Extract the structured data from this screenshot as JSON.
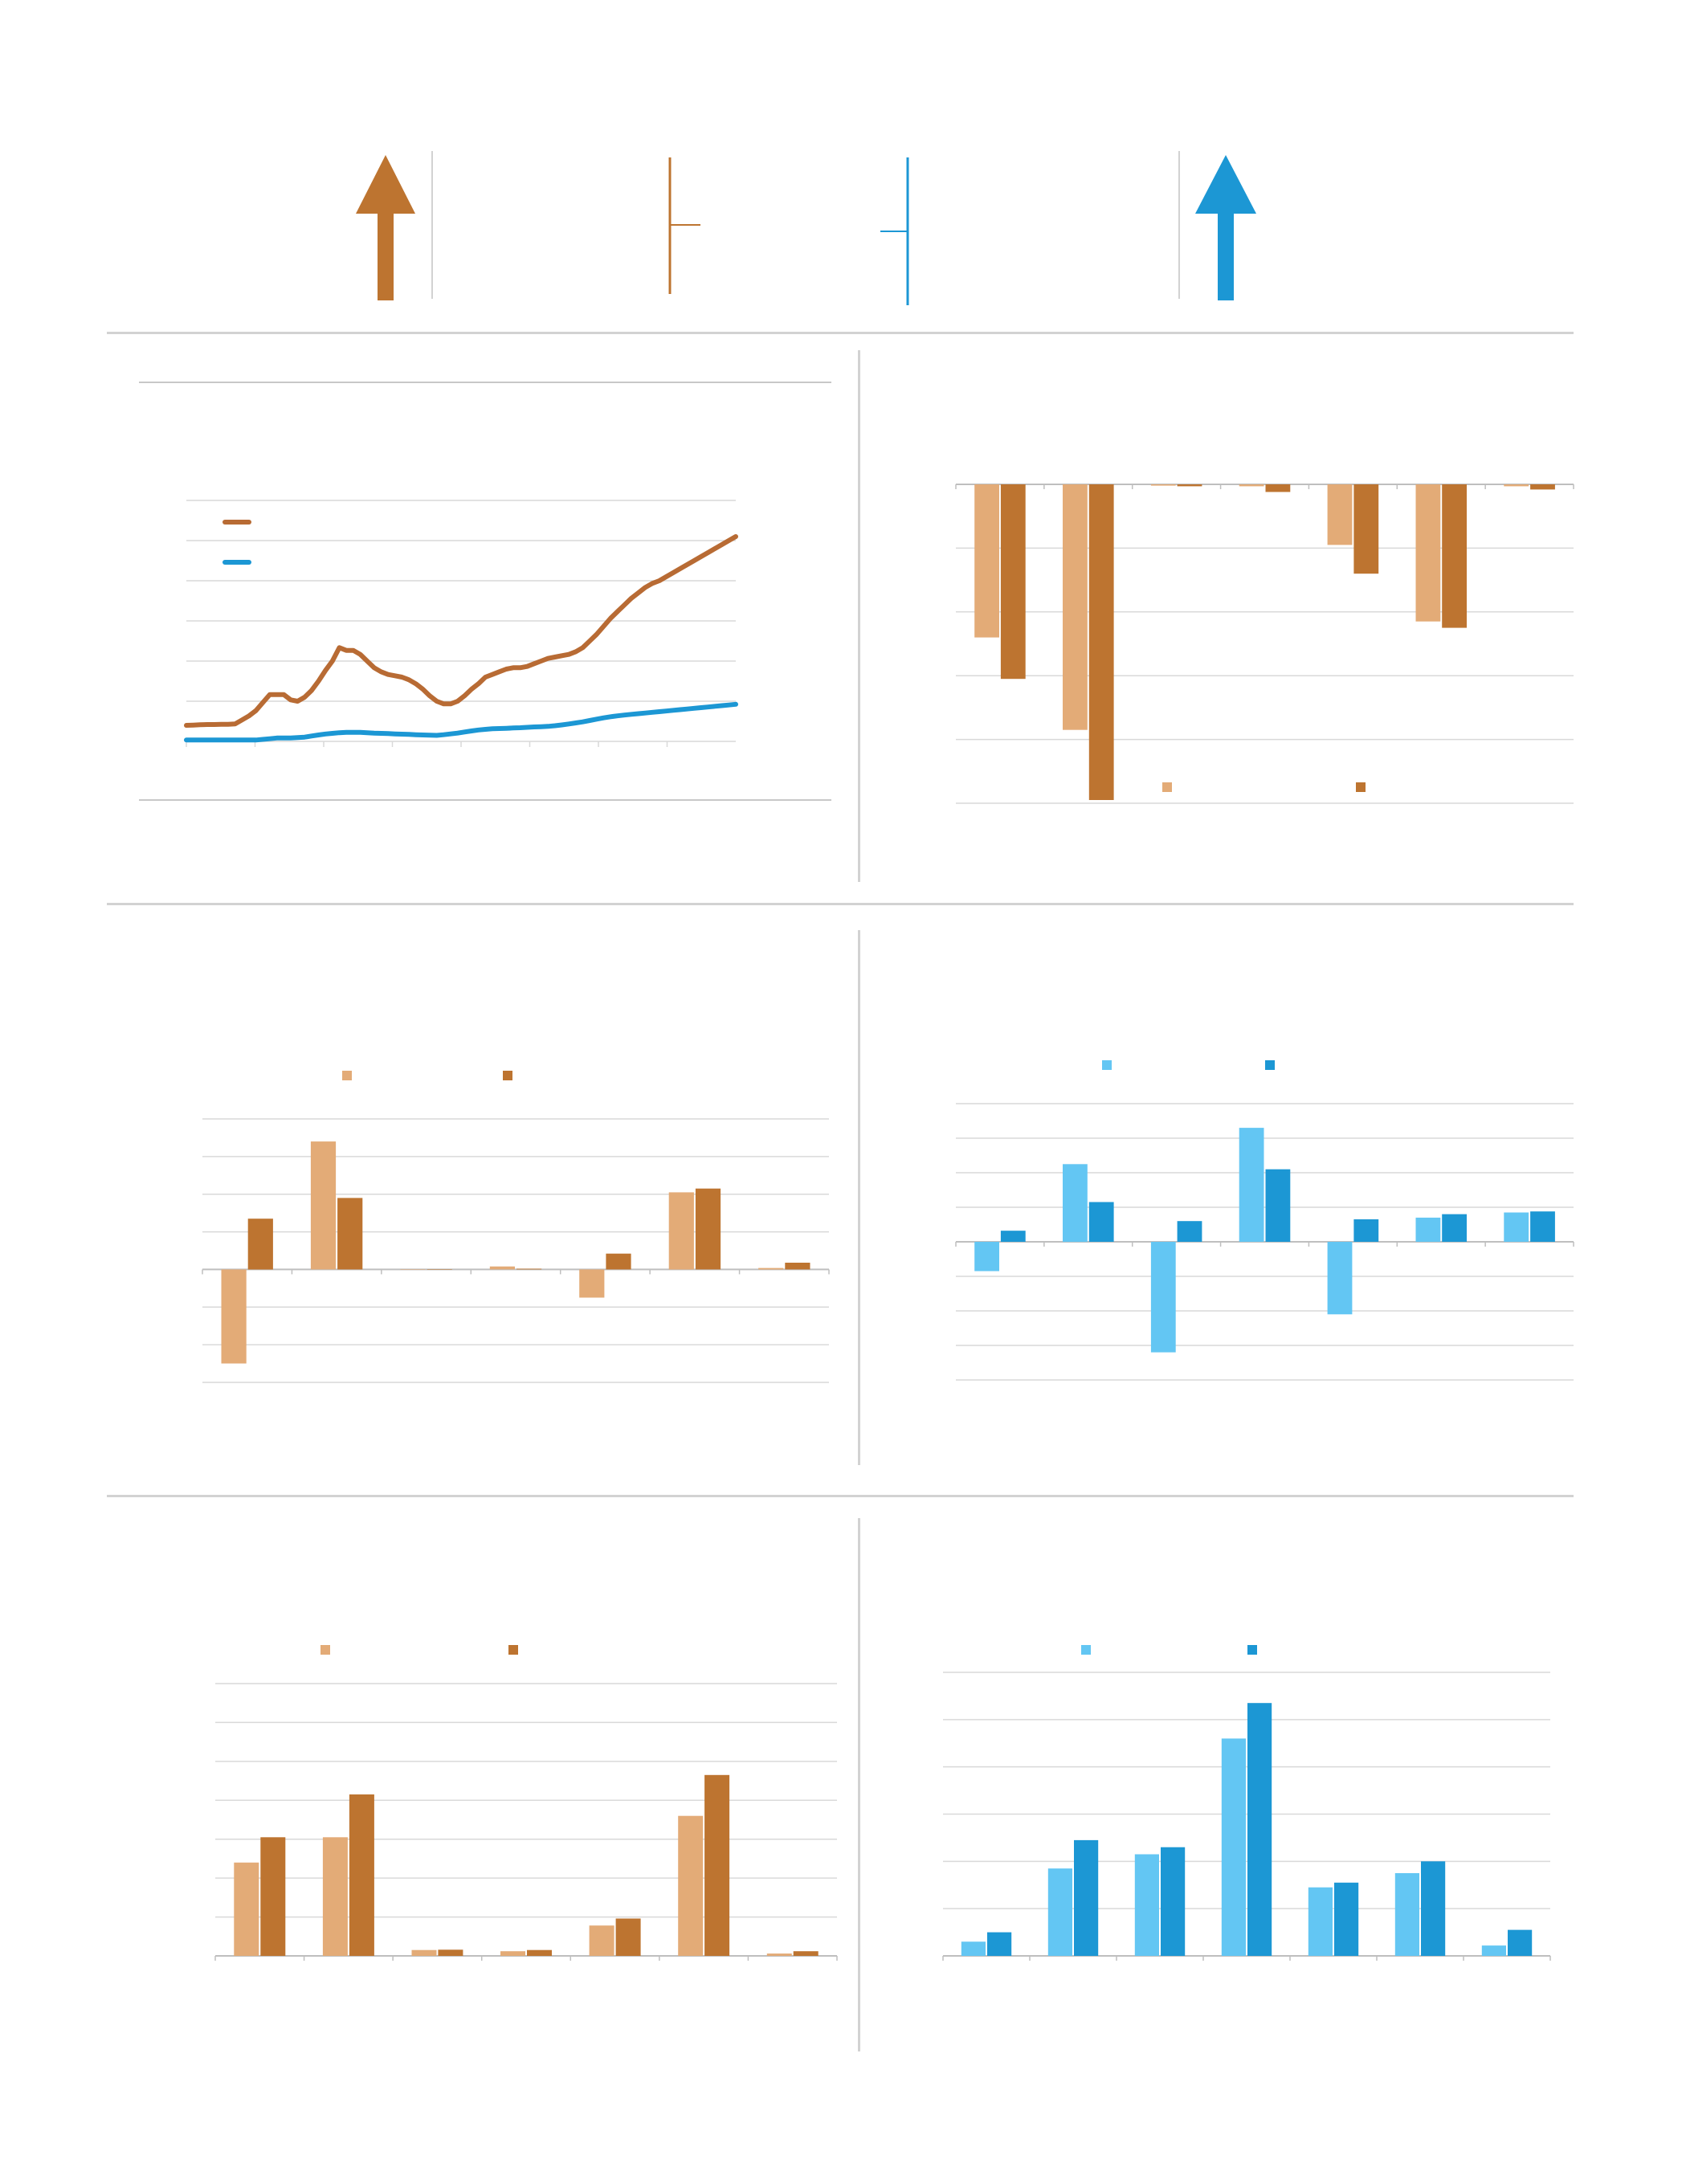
{
  "colors": {
    "brown_dark": "#bd7430",
    "brown_light": "#e3ab77",
    "brown_line": "#b86b34",
    "blue_dark": "#1c97d4",
    "blue_light": "#63c6f3",
    "grid": "#d9d9d9",
    "separator": "#d2d2d2"
  },
  "header": {
    "left_indicator_icon": "up-arrow-icon",
    "right_indicator_icon": "up-arrow-icon"
  },
  "chart_data": [
    {
      "type": "line",
      "series": [
        {
          "color": "#b86b34",
          "values": [
            0.2,
            0.22,
            0.24,
            0.26,
            0.26,
            0.27,
            0.28,
            0.3,
            0.6,
            0.9,
            1.3,
            1.9,
            2.5,
            2.5,
            2.5,
            2.1,
            2.0,
            2.3,
            2.8,
            3.5,
            4.3,
            5.0,
            6.0,
            5.8,
            5.8,
            5.5,
            5.0,
            4.5,
            4.2,
            4.0,
            3.9,
            3.8,
            3.6,
            3.3,
            2.9,
            2.4,
            2.0,
            1.8,
            1.8,
            2.0,
            2.4,
            2.9,
            3.3,
            3.8,
            4.0,
            4.2,
            4.4,
            4.5,
            4.5,
            4.6,
            4.8,
            5.0,
            5.2,
            5.3,
            5.4,
            5.5,
            5.7,
            6.0,
            6.5,
            7.0,
            7.6,
            8.2,
            8.7,
            9.2,
            9.7,
            10.1,
            10.5,
            10.8,
            11.0,
            11.3,
            11.6,
            11.9,
            12.2,
            12.5,
            12.8,
            13.1,
            13.4,
            13.7,
            14.0,
            14.3
          ]
        },
        {
          "color": "#1c97d4",
          "values": [
            -0.9,
            -0.9,
            -0.9,
            -0.9,
            -0.9,
            -0.9,
            -0.9,
            -0.9,
            -0.9,
            -0.9,
            -0.9,
            -0.85,
            -0.8,
            -0.75,
            -0.75,
            -0.75,
            -0.72,
            -0.68,
            -0.6,
            -0.52,
            -0.45,
            -0.4,
            -0.35,
            -0.33,
            -0.33,
            -0.33,
            -0.35,
            -0.38,
            -0.4,
            -0.42,
            -0.44,
            -0.46,
            -0.48,
            -0.5,
            -0.52,
            -0.54,
            -0.55,
            -0.5,
            -0.44,
            -0.38,
            -0.3,
            -0.22,
            -0.15,
            -0.1,
            -0.06,
            -0.04,
            -0.02,
            0.0,
            0.02,
            0.05,
            0.08,
            0.1,
            0.12,
            0.17,
            0.23,
            0.3,
            0.38,
            0.46,
            0.56,
            0.66,
            0.76,
            0.84,
            0.91,
            0.97,
            1.02,
            1.07,
            1.12,
            1.17,
            1.22,
            1.27,
            1.32,
            1.37,
            1.42,
            1.47,
            1.52,
            1.57,
            1.62,
            1.67,
            1.72,
            1.77
          ]
        }
      ],
      "ylim": [
        -1,
        17
      ],
      "y_gridlines": 7,
      "x_ticks": 8,
      "grid": true,
      "legend": "top-left"
    },
    {
      "type": "bar",
      "categories": [
        "",
        "",
        "",
        "",
        "",
        "",
        ""
      ],
      "series": [
        {
          "color": "#e3ab77",
          "values": [
            -24,
            -38.5,
            -0.2,
            -0.3,
            -9.5,
            -21.5,
            -0.3
          ]
        },
        {
          "color": "#bd7430",
          "values": [
            -30.5,
            -49.5,
            -0.3,
            -1.2,
            -14,
            -22.5,
            -0.8
          ]
        }
      ],
      "ylim": [
        -50,
        0
      ],
      "y_gridlines": 6,
      "grid": true,
      "legend": "bottom-center"
    },
    {
      "type": "bar",
      "categories": [
        "",
        "",
        "",
        "",
        "",
        "",
        ""
      ],
      "series": [
        {
          "color": "#e3ab77",
          "values": [
            -2.5,
            3.4,
            0.0,
            0.08,
            -0.75,
            2.05,
            0.04
          ]
        },
        {
          "color": "#bd7430",
          "values": [
            1.35,
            1.9,
            0.0,
            0.02,
            0.42,
            2.15,
            0.18
          ]
        }
      ],
      "ylim": [
        -3,
        4
      ],
      "y_gridlines": 8,
      "grid": true,
      "legend": "top-center"
    },
    {
      "type": "bar",
      "categories": [
        "",
        "",
        "",
        "",
        "",
        "",
        ""
      ],
      "series": [
        {
          "color": "#63c6f3",
          "values": [
            -0.85,
            2.25,
            -3.2,
            3.3,
            -2.1,
            0.7,
            0.85
          ]
        },
        {
          "color": "#1c97d4",
          "values": [
            0.32,
            1.15,
            0.6,
            2.1,
            0.65,
            0.8,
            0.88
          ]
        }
      ],
      "ylim": [
        -4,
        4
      ],
      "y_gridlines": 9,
      "grid": true,
      "legend": "top-center"
    },
    {
      "type": "bar",
      "categories": [
        "",
        "",
        "",
        "",
        "",
        "",
        ""
      ],
      "series": [
        {
          "color": "#e3ab77",
          "values": [
            2.4,
            3.05,
            0.15,
            0.12,
            0.78,
            3.6,
            0.06
          ]
        },
        {
          "color": "#bd7430",
          "values": [
            3.05,
            4.15,
            0.16,
            0.15,
            0.96,
            4.65,
            0.12
          ]
        }
      ],
      "ylim": [
        0,
        7
      ],
      "y_gridlines": 8,
      "grid": true,
      "legend": "top-center"
    },
    {
      "type": "bar",
      "categories": [
        "",
        "",
        "",
        "",
        "",
        "",
        ""
      ],
      "series": [
        {
          "color": "#63c6f3",
          "values": [
            0.3,
            1.85,
            2.15,
            4.6,
            1.45,
            1.75,
            0.22
          ]
        },
        {
          "color": "#1c97d4",
          "values": [
            0.5,
            2.45,
            2.3,
            5.35,
            1.55,
            2.0,
            0.55
          ]
        }
      ],
      "ylim": [
        0,
        6
      ],
      "y_gridlines": 7,
      "grid": true,
      "legend": "top-center"
    }
  ]
}
